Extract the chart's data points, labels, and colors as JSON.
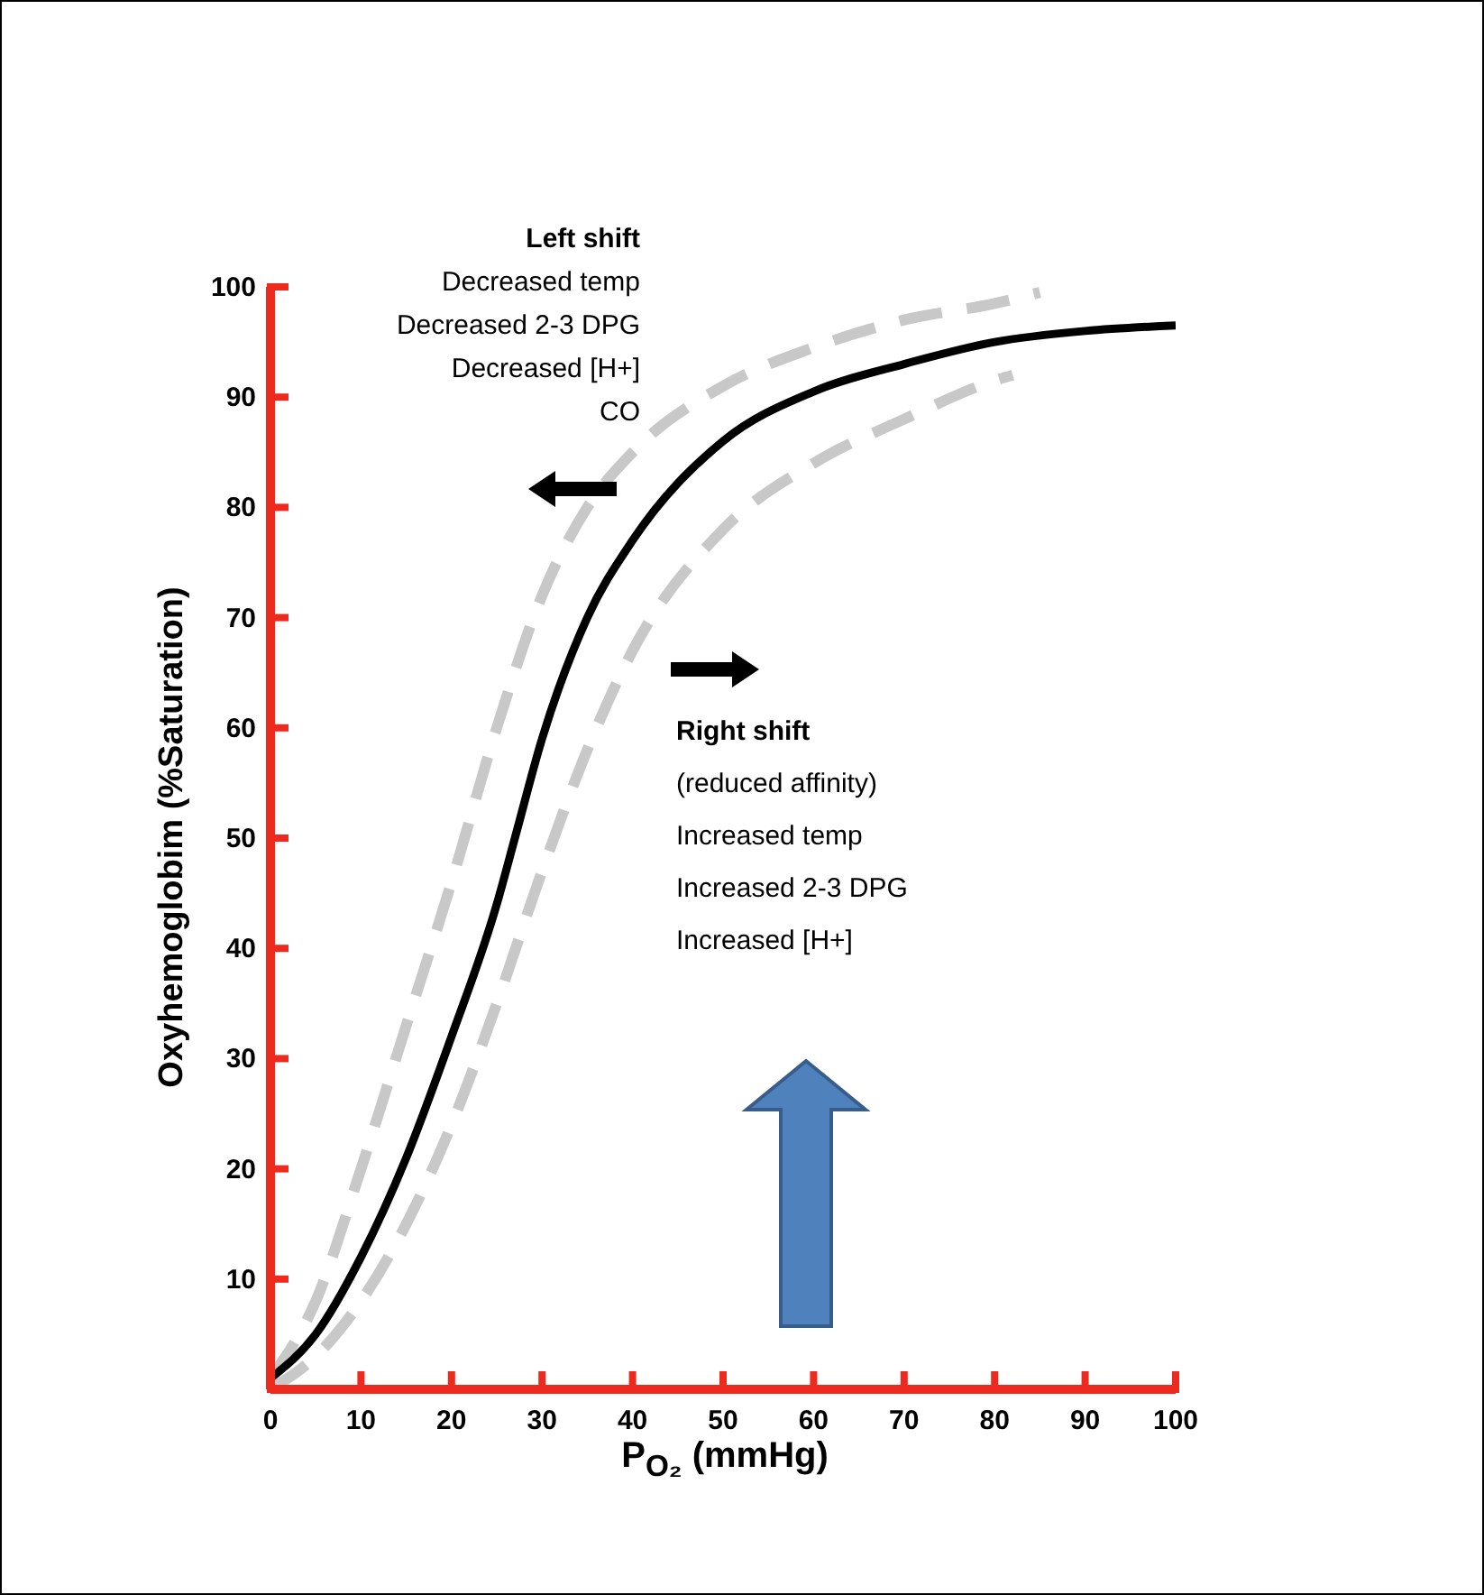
{
  "chart_data": {
    "type": "line",
    "xlabel": "P$_{O₂}$  (mmHg)",
    "ylabel": "Oxyhemoglobim  (%Saturation)",
    "xlim": [
      0,
      100
    ],
    "ylim": [
      0,
      100
    ],
    "xticks": [
      0,
      10,
      20,
      30,
      40,
      50,
      60,
      70,
      80,
      90,
      100
    ],
    "yticks": [
      10,
      20,
      30,
      40,
      50,
      60,
      70,
      80,
      90,
      100
    ],
    "annotations": [
      "Left shift",
      "Decreased temp",
      "Decreased 2-3 DPG",
      "Decreased [H+]",
      "CO",
      "Right shift",
      "(reduced affinity)",
      "Increased temp",
      "Increased 2-3 DPG",
      "Increased [H+]"
    ],
    "series": [
      {
        "color": "#c8c8c8",
        "line_style": "dashed",
        "x": [
          0,
          5,
          10,
          15,
          20,
          25,
          30,
          35,
          40,
          50,
          60,
          70,
          80,
          85
        ],
        "values": [
          1,
          8,
          20,
          33,
          46,
          60,
          72,
          80,
          85,
          91,
          94.5,
          97,
          98.5,
          99.5
        ]
      },
      {
        "color": "#c8c8c8",
        "line_style": "dashed",
        "x": [
          0,
          5,
          10,
          15,
          20,
          25,
          30,
          35,
          40,
          50,
          60,
          70,
          80,
          82
        ],
        "values": [
          0,
          3,
          8,
          15,
          24,
          35,
          47,
          58,
          67,
          78,
          84,
          88,
          91.5,
          92
        ]
      },
      {
        "color": "#000000",
        "line_style": "solid",
        "x": [
          0,
          5,
          10,
          15,
          20,
          25,
          27,
          30,
          35,
          40,
          50,
          60,
          70,
          80,
          90,
          100
        ],
        "values": [
          1,
          5,
          12,
          21,
          32,
          44,
          50,
          59,
          70,
          77,
          86,
          90.5,
          93,
          95,
          96,
          96.5
        ]
      }
    ]
  }
}
